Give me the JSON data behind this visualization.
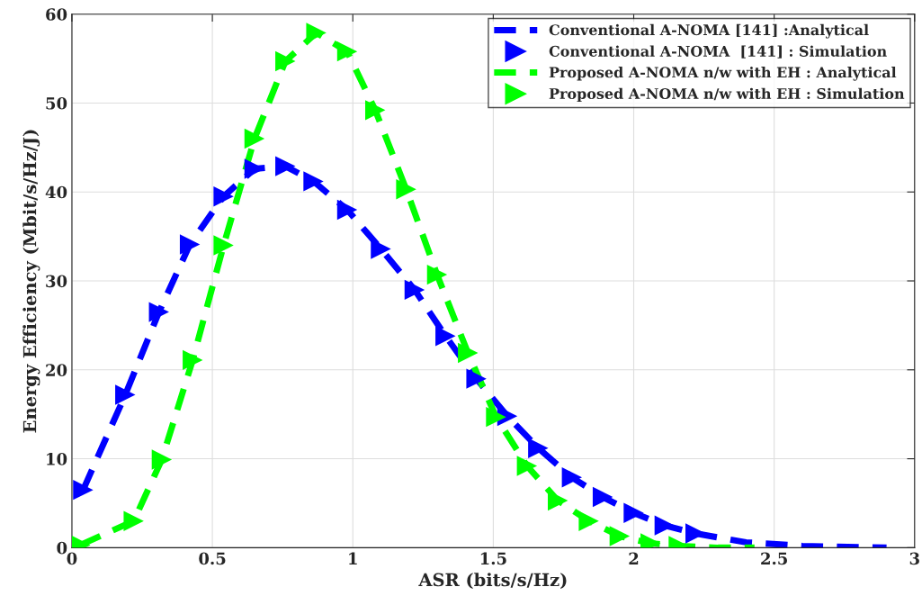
{
  "chart_data": {
    "type": "line",
    "xlabel": "ASR (bits/s/Hz)",
    "ylabel": "Energy Efficiency (Mbit/s/Hz/J)",
    "xlim": [
      0,
      3
    ],
    "xticks": [
      0,
      0.5,
      1,
      1.5,
      2,
      2.5,
      3
    ],
    "ylim": [
      0,
      60
    ],
    "yticks": [
      0,
      10,
      20,
      30,
      40,
      50,
      60
    ],
    "grid": true,
    "legend": "top right",
    "series": [
      {
        "name": "Conventional A-NOMA [141] :Analytical",
        "line_style": "dashed",
        "marker": "none",
        "color": "#0000ff",
        "x": [
          0.04,
          0.19,
          0.31,
          0.42,
          0.54,
          0.65,
          0.76,
          0.86,
          0.98,
          1.1,
          1.22,
          1.33,
          1.44,
          1.55,
          1.66,
          1.78,
          1.89,
          2.0,
          2.11,
          2.22,
          2.4,
          2.6,
          2.9
        ],
        "values": [
          6.5,
          17.2,
          26.5,
          34.1,
          39.5,
          42.6,
          42.9,
          41.2,
          38.0,
          33.6,
          29.0,
          23.8,
          19.0,
          14.8,
          11.2,
          7.9,
          5.7,
          3.9,
          2.5,
          1.6,
          0.6,
          0.2,
          0.0
        ]
      },
      {
        "name": "Conventional A-NOMA  [141] : Simulation",
        "type": "scatter",
        "marker": "triangle",
        "color": "#0000ff",
        "x": [
          0.04,
          0.19,
          0.31,
          0.42,
          0.54,
          0.65,
          0.76,
          0.86,
          0.98,
          1.1,
          1.22,
          1.33,
          1.44,
          1.55,
          1.66,
          1.78,
          1.89,
          2.0,
          2.11,
          2.22
        ],
        "values": [
          6.5,
          17.2,
          26.5,
          34.1,
          39.5,
          42.6,
          42.9,
          41.2,
          38.0,
          33.6,
          29.0,
          23.8,
          19.0,
          14.8,
          11.2,
          7.9,
          5.7,
          3.9,
          2.5,
          1.6
        ]
      },
      {
        "name": "Proposed A-NOMA n/w with EH : Analytical",
        "line_style": "dashed",
        "marker": "none",
        "color": "#00ff00",
        "x": [
          0.03,
          0.22,
          0.32,
          0.43,
          0.54,
          0.65,
          0.76,
          0.87,
          0.98,
          1.08,
          1.19,
          1.3,
          1.41,
          1.51,
          1.62,
          1.73,
          1.84,
          1.95,
          2.06,
          2.16,
          2.3,
          2.43
        ],
        "values": [
          0.3,
          3.0,
          9.9,
          21.1,
          34.0,
          46.0,
          54.7,
          57.9,
          55.8,
          49.2,
          40.3,
          30.7,
          21.9,
          14.7,
          9.2,
          5.3,
          3.0,
          1.3,
          0.5,
          0.2,
          0.0,
          0.0
        ]
      },
      {
        "name": "Proposed A-NOMA n/w with EH : Simulation",
        "type": "scatter",
        "marker": "triangle",
        "color": "#00ff00",
        "x": [
          0.03,
          0.22,
          0.32,
          0.43,
          0.54,
          0.65,
          0.76,
          0.87,
          0.98,
          1.08,
          1.19,
          1.3,
          1.41,
          1.51,
          1.62,
          1.73,
          1.84,
          1.95,
          2.06,
          2.16
        ],
        "values": [
          0.3,
          3.0,
          9.9,
          21.1,
          34.0,
          46.0,
          54.7,
          57.9,
          55.8,
          49.2,
          40.3,
          30.7,
          21.9,
          14.7,
          9.2,
          5.3,
          3.0,
          1.3,
          0.5,
          0.2
        ]
      }
    ]
  }
}
